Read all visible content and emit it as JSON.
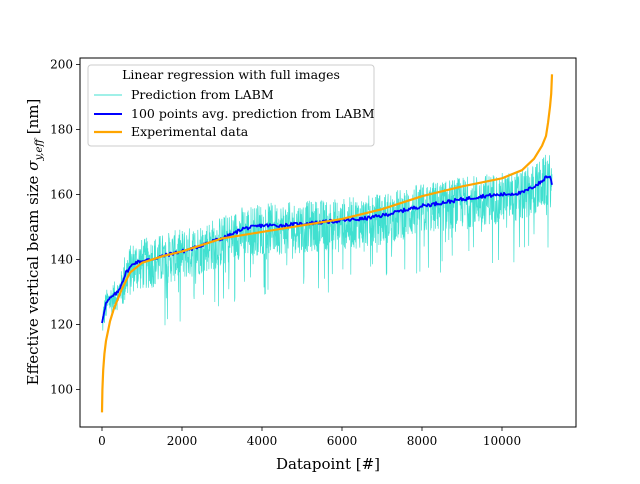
{
  "chart_data": {
    "type": "line",
    "title": "",
    "xlabel": "Datapoint [#]",
    "ylabel_main": "Effective vertical beam size ",
    "ylabel_symbol": "σ",
    "ylabel_subscript": "y,eff",
    "ylabel_unit": " [nm]",
    "xlim": [
      -550,
      11850
    ],
    "ylim": [
      88.5,
      202
    ],
    "xticks": [
      0,
      2000,
      4000,
      6000,
      8000,
      10000
    ],
    "xtick_labels": [
      "0",
      "2000",
      "4000",
      "6000",
      "8000",
      "10000"
    ],
    "yticks": [
      100,
      120,
      140,
      160,
      180,
      200
    ],
    "ytick_labels": [
      "100",
      "120",
      "140",
      "160",
      "180",
      "200"
    ],
    "grid": false,
    "legend": {
      "title": "Linear regression with full images",
      "placement": "top-left",
      "entries": [
        "Prediction from LABM",
        "100 points avg. prediction from LABM",
        "Experimental data"
      ]
    },
    "series": [
      {
        "name": "Prediction from LABM",
        "color": "#40e0d0",
        "noisy": true,
        "x": [
          0,
          11250
        ],
        "center_from": "100 points avg. prediction from LABM",
        "spread_upper": 7,
        "spread_lower": 9,
        "spike_min": 118
      },
      {
        "name": "100 points avg. prediction from LABM",
        "color": "#0000ff",
        "x": [
          0,
          50,
          100,
          200,
          300,
          400,
          500,
          600,
          700,
          800,
          1000,
          1200,
          1500,
          1800,
          2000,
          2300,
          2600,
          3000,
          3300,
          3500,
          3800,
          4000,
          4500,
          5000,
          5500,
          6000,
          6500,
          7000,
          7500,
          8000,
          8500,
          9000,
          9500,
          10000,
          10500,
          10800,
          11000,
          11100,
          11200,
          11250
        ],
        "values": [
          120.5,
          124,
          126.5,
          128,
          129,
          130,
          133,
          136,
          137.5,
          139,
          139.5,
          140,
          141,
          142,
          142.5,
          143.5,
          145,
          146.5,
          148,
          149.5,
          150,
          150.5,
          150.5,
          151,
          151.5,
          152,
          152.5,
          153.5,
          155,
          156.5,
          157.5,
          158.5,
          159.5,
          160,
          160.5,
          162.5,
          164,
          165.5,
          165.5,
          163
        ]
      },
      {
        "name": "Experimental data",
        "color": "#ffa500",
        "x": [
          0,
          10,
          30,
          60,
          100,
          150,
          200,
          300,
          500,
          700,
          1000,
          1500,
          2000,
          2500,
          3000,
          3500,
          4000,
          5000,
          6000,
          7000,
          8000,
          9000,
          10000,
          10500,
          10800,
          11000,
          11100,
          11150,
          11200,
          11230,
          11250
        ],
        "values": [
          93,
          100,
          106,
          111,
          115,
          118,
          121,
          125,
          131,
          136,
          139,
          141,
          142.5,
          144.5,
          146.5,
          147.5,
          148.5,
          150.5,
          152.5,
          155.5,
          159.5,
          162.5,
          165,
          167.5,
          171,
          175,
          178,
          182,
          187,
          191,
          197
        ]
      }
    ]
  }
}
